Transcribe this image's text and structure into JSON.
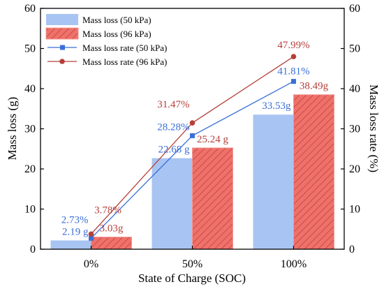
{
  "chart_data": {
    "type": "bar",
    "categories": [
      "0%",
      "50%",
      "100%"
    ],
    "xlabel": "State of Charge (SOC)",
    "ylabel": "Mass loss (g)",
    "y2label": "Mass loss rate (%)",
    "ylim": [
      0,
      60
    ],
    "y2lim": [
      0,
      60
    ],
    "yticks": [
      "0",
      "10",
      "20",
      "30",
      "40",
      "50",
      "60"
    ],
    "y2ticks": [
      "0",
      "10",
      "20",
      "30",
      "40",
      "50",
      "60"
    ],
    "grid": false,
    "legend_position": "top-left",
    "series": [
      {
        "name": "Mass loss (50 kPa)",
        "kind": "bar",
        "axis": "left",
        "color": "#a8c4f2",
        "values": [
          2.19,
          22.68,
          33.53
        ],
        "labels": [
          "2.19 g",
          "22.68 g",
          "33.53g"
        ]
      },
      {
        "name": "Mass loss (96 kPa)",
        "kind": "bar",
        "axis": "left",
        "color": "#f0706a",
        "hatch": "diagonal",
        "values": [
          3.03,
          25.24,
          38.49
        ],
        "labels": [
          "3.03g",
          "25.24 g",
          "38.49g"
        ]
      },
      {
        "name": "Mass loss rate (50 kPa)",
        "kind": "line",
        "axis": "right",
        "color": "#3a6fd8",
        "marker": "square",
        "values": [
          2.73,
          28.28,
          41.81
        ],
        "labels": [
          "2.73%",
          "28.28%",
          "41.81%"
        ]
      },
      {
        "name": "Mass loss rate (96 kPa)",
        "kind": "line",
        "axis": "right",
        "color": "#b5403a",
        "marker": "circle",
        "values": [
          3.78,
          31.47,
          47.99
        ],
        "labels": [
          "3.78%",
          "31.47%",
          "47.99%"
        ]
      }
    ]
  }
}
